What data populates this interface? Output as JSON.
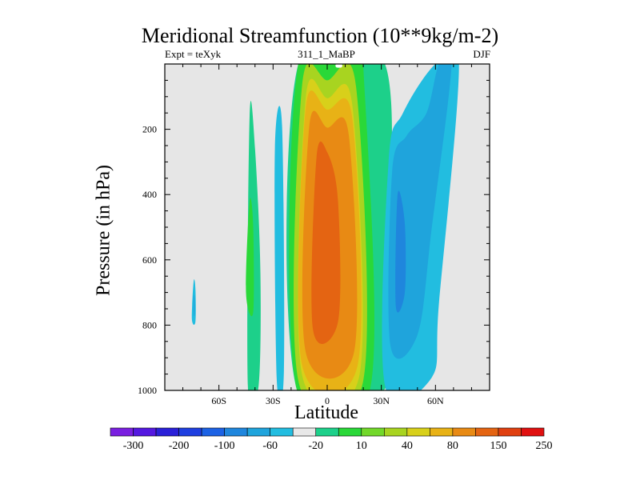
{
  "chart_data": {
    "type": "heatmap",
    "title": "Meridional Streamfunction (10**9kg/m-2)",
    "subtitle_left": "Expt = teXyk",
    "subtitle_center": "311_1_MaBP",
    "subtitle_right": "DJF",
    "xlabel": "Latitude",
    "ylabel": "Pressure (in hPa)",
    "xlim": [
      -90,
      90
    ],
    "ylim": [
      1000,
      0
    ],
    "x_ticks": [
      {
        "value": -60,
        "label": "60S"
      },
      {
        "value": -30,
        "label": "30S"
      },
      {
        "value": 0,
        "label": "0"
      },
      {
        "value": 30,
        "label": "30N"
      },
      {
        "value": 60,
        "label": "60N"
      }
    ],
    "y_ticks": [
      200,
      400,
      600,
      800,
      1000
    ],
    "colorbar_labels": [
      "-300",
      "-200",
      "-100",
      "-60",
      "-20",
      "10",
      "40",
      "80",
      "150",
      "250"
    ],
    "colorbar_colors": [
      "#7a1fe0",
      "#5418e0",
      "#2a20d8",
      "#1f3fe0",
      "#1c62e4",
      "#1f86dd",
      "#1fa4dc",
      "#22bde0",
      "#e8e8e8",
      "#1dd08a",
      "#2ad838",
      "#72d82a",
      "#a8d420",
      "#d8d01a",
      "#e8b216",
      "#e88a14",
      "#e46412",
      "#e04010",
      "#e01010"
    ],
    "background_color": "#e6e6e6",
    "regions": [
      {
        "level": "10",
        "color": "#1dd08a",
        "points": [
          [
            -44,
            985
          ],
          [
            -43,
            160
          ],
          [
            -40,
            260
          ],
          [
            -37,
            640
          ],
          [
            -38,
            985
          ]
        ]
      },
      {
        "level": "40",
        "color": "#2ad838",
        "points": [
          [
            -45,
            700
          ],
          [
            -43,
            420
          ],
          [
            -41,
            500
          ],
          [
            -41,
            760
          ]
        ]
      },
      {
        "level": "-20",
        "color": "#22bde0",
        "points": [
          [
            -75,
            780
          ],
          [
            -74,
            665
          ],
          [
            -73,
            690
          ],
          [
            -73,
            790
          ]
        ]
      },
      {
        "level": "-60",
        "color": "#1fa4dc",
        "points": [
          [
            -74,
            760
          ],
          [
            -74,
            710
          ],
          [
            -73.5,
            720
          ],
          [
            -73.5,
            770
          ]
        ]
      },
      {
        "level": "-20",
        "color": "#22bde0",
        "points": [
          [
            -28,
            960
          ],
          [
            -29,
            260
          ],
          [
            -25,
            190
          ],
          [
            -24,
            940
          ]
        ]
      },
      {
        "level": "10",
        "color": "#1dd08a",
        "points": [
          [
            -17,
            995
          ],
          [
            -16,
            0
          ],
          [
            32,
            0
          ],
          [
            33,
            700
          ],
          [
            32,
            995
          ]
        ]
      },
      {
        "level": "40",
        "color": "#2ad838",
        "points": [
          [
            -17,
            995
          ],
          [
            -16,
            0
          ],
          [
            16,
            0
          ],
          [
            20,
            5
          ],
          [
            24,
            990
          ]
        ]
      },
      {
        "level": "80",
        "color": "#a8d420",
        "points": [
          [
            -16,
            970
          ],
          [
            -14,
            70
          ],
          [
            0,
            50
          ],
          [
            16,
            70
          ],
          [
            20,
            970
          ]
        ]
      },
      {
        "level": "150",
        "color": "#d8d01a",
        "points": [
          [
            -14,
            950
          ],
          [
            -12,
            110
          ],
          [
            0,
            105
          ],
          [
            14,
            130
          ],
          [
            18,
            950
          ]
        ]
      },
      {
        "level": "150",
        "color": "#e8b216",
        "points": [
          [
            -14,
            920
          ],
          [
            -12,
            140
          ],
          [
            0,
            140
          ],
          [
            14,
            170
          ],
          [
            17,
            920
          ]
        ]
      },
      {
        "level": "150",
        "color": "#e88a14",
        "points": [
          [
            -12,
            880
          ],
          [
            -10,
            195
          ],
          [
            0,
            195
          ],
          [
            12,
            220
          ],
          [
            15,
            880
          ]
        ]
      },
      {
        "level": "250",
        "color": "#e46412",
        "points": [
          [
            -8,
            810
          ],
          [
            -6,
            290
          ],
          [
            0,
            270
          ],
          [
            6,
            420
          ],
          [
            6,
            790
          ]
        ]
      },
      {
        "level": "-20",
        "color": "#22bde0",
        "points": [
          [
            32,
            985
          ],
          [
            34,
            300
          ],
          [
            42,
            150
          ],
          [
            60,
            0
          ],
          [
            73,
            0
          ],
          [
            62,
            730
          ],
          [
            58,
            960
          ]
        ]
      },
      {
        "level": "-60",
        "color": "#1fa4dc",
        "points": [
          [
            35,
            860
          ],
          [
            36,
            330
          ],
          [
            44,
            220
          ],
          [
            55,
            150
          ],
          [
            62,
            0
          ],
          [
            69,
            0
          ],
          [
            58,
            500
          ],
          [
            50,
            830
          ]
        ]
      },
      {
        "level": "-100",
        "color": "#1f86dd",
        "points": [
          [
            38,
            740
          ],
          [
            39,
            400
          ],
          [
            43,
            490
          ],
          [
            43,
            700
          ]
        ]
      },
      {
        "level": "",
        "color": "#ffffff",
        "points": [
          [
            5,
            10
          ],
          [
            5,
            0
          ],
          [
            8,
            0
          ],
          [
            8,
            10
          ]
        ]
      }
    ]
  }
}
